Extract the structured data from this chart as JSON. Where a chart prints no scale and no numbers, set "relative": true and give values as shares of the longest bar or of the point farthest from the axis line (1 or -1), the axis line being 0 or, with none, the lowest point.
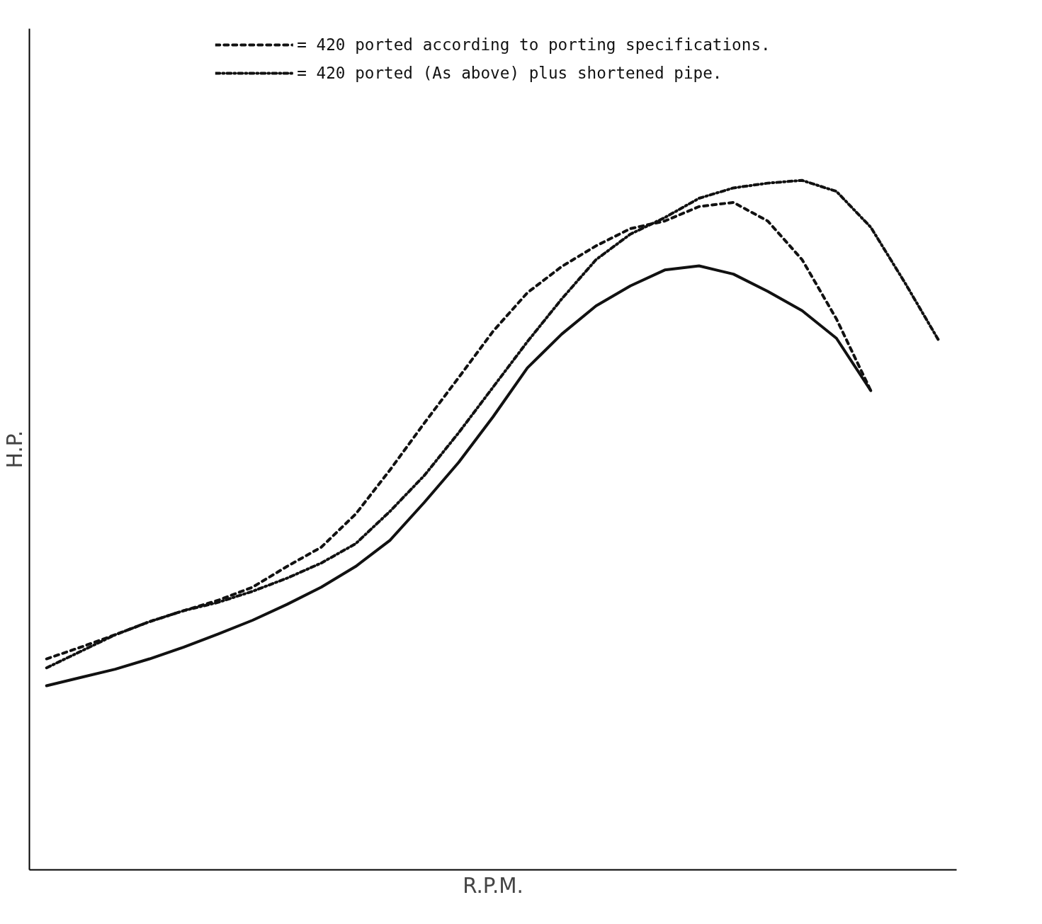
{
  "chart_data": {
    "type": "line",
    "relative": true,
    "xlabel": "R.P.M.",
    "ylabel": "H.P.",
    "legend": "top",
    "categories": [
      null,
      null,
      null,
      null,
      null,
      null,
      null,
      null,
      null,
      null,
      null,
      null,
      null,
      null,
      null,
      null,
      null,
      null,
      null,
      null,
      null,
      null,
      null,
      null,
      null,
      null,
      null
    ],
    "series": [
      {
        "color": "#111111",
        "line_style": "solid",
        "values": [
          0.267,
          0.279,
          0.291,
          0.306,
          0.323,
          0.342,
          0.362,
          0.385,
          0.41,
          0.44,
          0.478,
          0.533,
          0.591,
          0.657,
          0.728,
          0.777,
          0.818,
          0.847,
          0.87,
          0.876,
          0.864,
          0.839,
          0.811,
          0.771,
          0.695,
          null,
          null
        ]
      },
      {
        "name": "= 420 ported according to porting specifications.",
        "color": "#111111",
        "line_style": "dashed",
        "values": [
          0.306,
          0.323,
          0.341,
          0.36,
          0.376,
          0.391,
          0.41,
          0.44,
          0.468,
          0.516,
          0.58,
          0.648,
          0.714,
          0.781,
          0.837,
          0.875,
          0.905,
          0.93,
          0.941,
          0.962,
          0.968,
          0.941,
          0.885,
          0.799,
          0.695,
          null,
          null
        ]
      },
      {
        "name": "= 420 ported (As above) plus shortened pipe.",
        "color": "#111111",
        "line_style": "dashdot",
        "values": [
          0.293,
          0.317,
          0.341,
          0.36,
          0.376,
          0.388,
          0.404,
          0.423,
          0.445,
          0.473,
          0.52,
          0.572,
          0.634,
          0.7,
          0.766,
          0.828,
          0.885,
          0.922,
          0.946,
          0.974,
          0.989,
          0.996,
          1.0,
          0.984,
          0.932,
          0.851,
          0.766
        ]
      }
    ]
  }
}
